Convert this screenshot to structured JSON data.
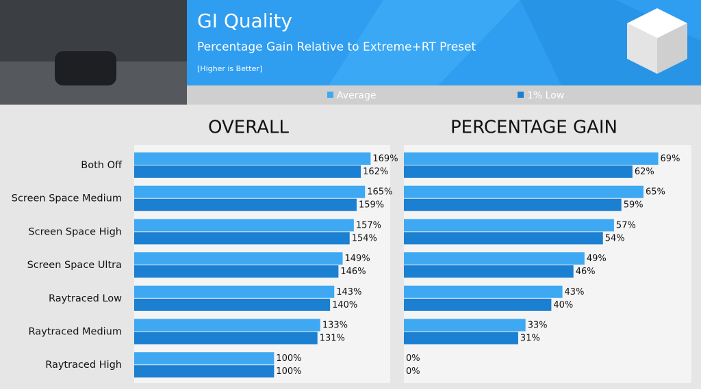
{
  "header": {
    "title": "GI Quality",
    "subtitle": "Percentage Gain Relative to Extreme+RT Preset",
    "note": "[Higher is Better]"
  },
  "chart_data": [
    {
      "type": "bar",
      "orientation": "horizontal",
      "title": "OVERALL",
      "categories": [
        "Both Off",
        "Screen Space Medium",
        "Screen Space High",
        "Screen Space Ultra",
        "Raytraced Low",
        "Raytraced Medium",
        "Raytraced High"
      ],
      "xlim": [
        0,
        183
      ],
      "series": [
        {
          "name": "Average",
          "color": "#3ea9f2",
          "values": [
            169,
            165,
            157,
            149,
            143,
            133,
            100
          ],
          "value_labels": [
            "169%",
            "165%",
            "157%",
            "149%",
            "143%",
            "133%",
            "100%"
          ]
        },
        {
          "name": "1% Low",
          "color": "#1b7fd2",
          "values": [
            162,
            159,
            154,
            146,
            140,
            131,
            100
          ],
          "value_labels": [
            "162%",
            "159%",
            "154%",
            "146%",
            "140%",
            "131%",
            "100%"
          ]
        }
      ]
    },
    {
      "type": "bar",
      "orientation": "horizontal",
      "title": "PERCENTAGE GAIN",
      "xlim": [
        0,
        78
      ],
      "series": [
        {
          "name": "Average",
          "color": "#3ea9f2",
          "values": [
            69,
            65,
            57,
            49,
            43,
            33,
            0
          ],
          "value_labels": [
            "69%",
            "65%",
            "57%",
            "49%",
            "43%",
            "33%",
            "0%"
          ]
        },
        {
          "name": "1% Low",
          "color": "#1b7fd2",
          "values": [
            62,
            59,
            54,
            46,
            40,
            31,
            0
          ],
          "value_labels": [
            "62%",
            "59%",
            "54%",
            "46%",
            "40%",
            "31%",
            "0%"
          ]
        }
      ]
    }
  ]
}
